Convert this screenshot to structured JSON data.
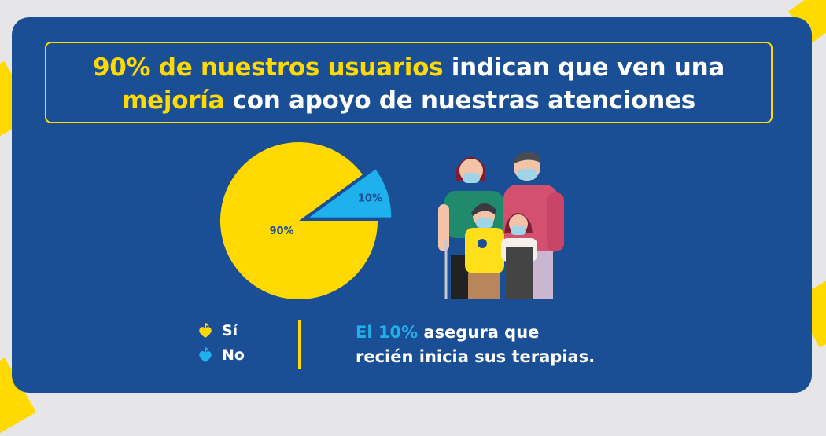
{
  "title": {
    "highlight1": "90% de nuestros usuarios",
    "text1": " indican que ven una",
    "highlight2": "mejoría",
    "text2": " con apoyo de nuestras atenciones"
  },
  "chart_data": {
    "type": "pie",
    "title": "90% de nuestros usuarios indican que ven una mejoría con apoyo de nuestras atenciones",
    "categories": [
      "Sí",
      "No"
    ],
    "values": [
      90,
      10
    ],
    "labels": [
      "90%",
      "10%"
    ],
    "colors": [
      "#ffd900",
      "#1fb0ee"
    ],
    "exploded": [
      "No"
    ],
    "legend": "bottom-left"
  },
  "legend": [
    {
      "label": "Sí",
      "icon": "heart-fruit-icon",
      "color": "#ffd900"
    },
    {
      "label": "No",
      "icon": "heart-fruit-icon",
      "color": "#1fb0ee"
    }
  ],
  "note": {
    "highlight": "El 10%",
    "text1": " asegura que",
    "text2": "recién inicia sus terapias."
  },
  "illustration": "family-with-masks-illustration"
}
